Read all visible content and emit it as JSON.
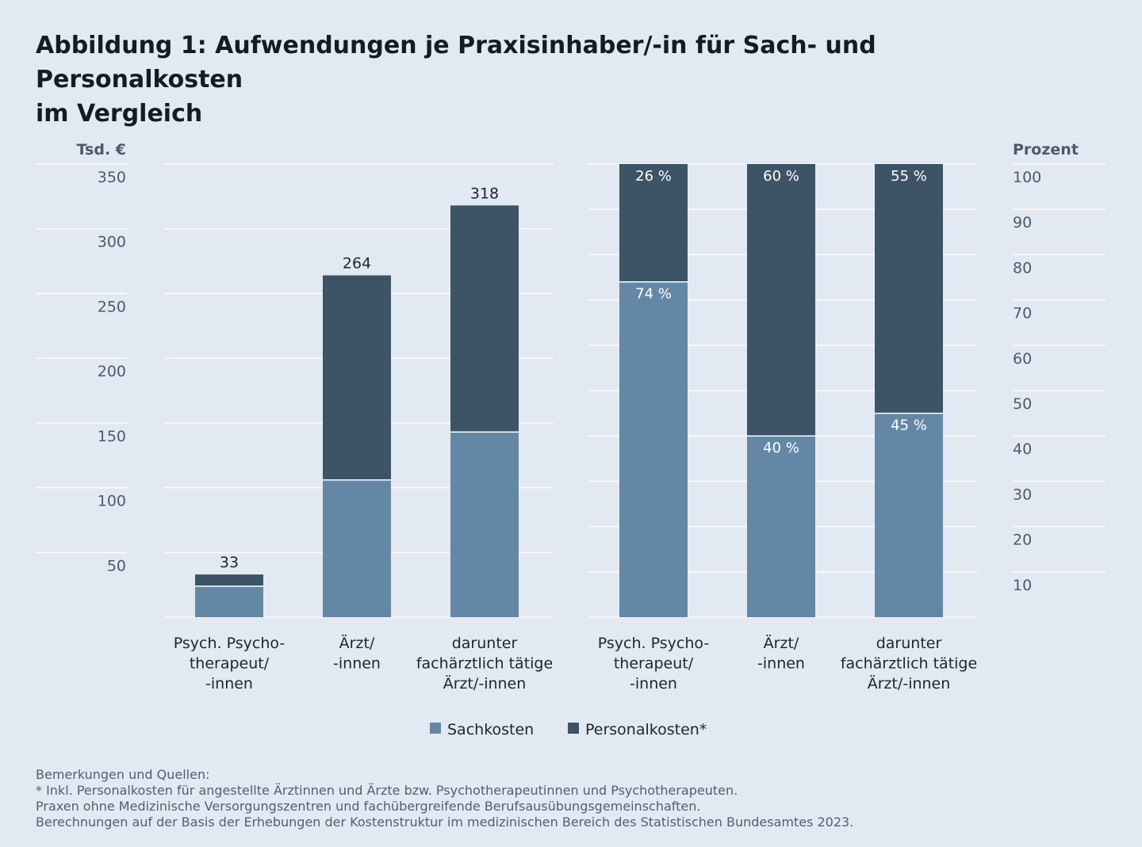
{
  "title": {
    "line1": "Abbildung 1: Aufwendungen je Praxisinhaber/-in für Sach- und Personalkosten",
    "line2": "im Vergleich"
  },
  "colors": {
    "sachkosten": "#6587a6",
    "personalkosten": "#3d5366",
    "grid": "#ffffff",
    "axis_text": "#4a5a6c",
    "background": "#e3e9f2"
  },
  "legend": [
    {
      "label": "Sachkosten",
      "color": "#6587a6"
    },
    {
      "label": "Personalkosten*",
      "color": "#3d5366"
    }
  ],
  "chart_data": [
    {
      "type": "bar",
      "stacked": true,
      "ylabel": "Tsd. €",
      "ylim": [
        0,
        350
      ],
      "yticks": [
        50,
        100,
        150,
        200,
        250,
        300,
        350
      ],
      "grid": true,
      "categories": [
        [
          "Psych. Psycho-",
          "therapeut/",
          "-innen"
        ],
        [
          "Ärzt/",
          "-innen"
        ],
        [
          "darunter",
          "fachärztlich tätige",
          "Ärzt/-innen"
        ]
      ],
      "totals": [
        "33",
        "264",
        "318"
      ],
      "series": [
        {
          "name": "Sachkosten",
          "values": [
            24,
            106,
            143
          ]
        },
        {
          "name": "Personalkosten*",
          "values": [
            9,
            158,
            175
          ]
        }
      ]
    },
    {
      "type": "bar",
      "stacked": true,
      "ylabel": "Prozent",
      "ylim": [
        0,
        100
      ],
      "yticks": [
        10,
        20,
        30,
        40,
        50,
        60,
        70,
        80,
        90,
        100
      ],
      "grid": true,
      "categories": [
        [
          "Psych. Psycho-",
          "therapeut/",
          "-innen"
        ],
        [
          "Ärzt/",
          "-innen"
        ],
        [
          "darunter",
          "fachärztlich tätige",
          "Ärzt/-innen"
        ]
      ],
      "series": [
        {
          "name": "Sachkosten",
          "values": [
            74,
            40,
            45
          ],
          "labels": [
            "74 %",
            "40 %",
            "45 %"
          ]
        },
        {
          "name": "Personalkosten*",
          "values": [
            26,
            60,
            55
          ],
          "labels": [
            "26 %",
            "60 %",
            "55 %"
          ]
        }
      ]
    }
  ],
  "notes": [
    "Bemerkungen und Quellen:",
    "* Inkl. Personalkosten für angestellte Ärztinnen und Ärzte bzw. Psychotherapeutinnen und Psychotherapeuten.",
    "Praxen ohne Medizinische Versorgungszentren und fachübergreifende Berufsausübungsgemeinschaften.",
    "Berechnungen auf der Basis der Erhebungen der Kostenstruktur im medizinischen Bereich des Statistischen Bundesamtes 2023."
  ]
}
